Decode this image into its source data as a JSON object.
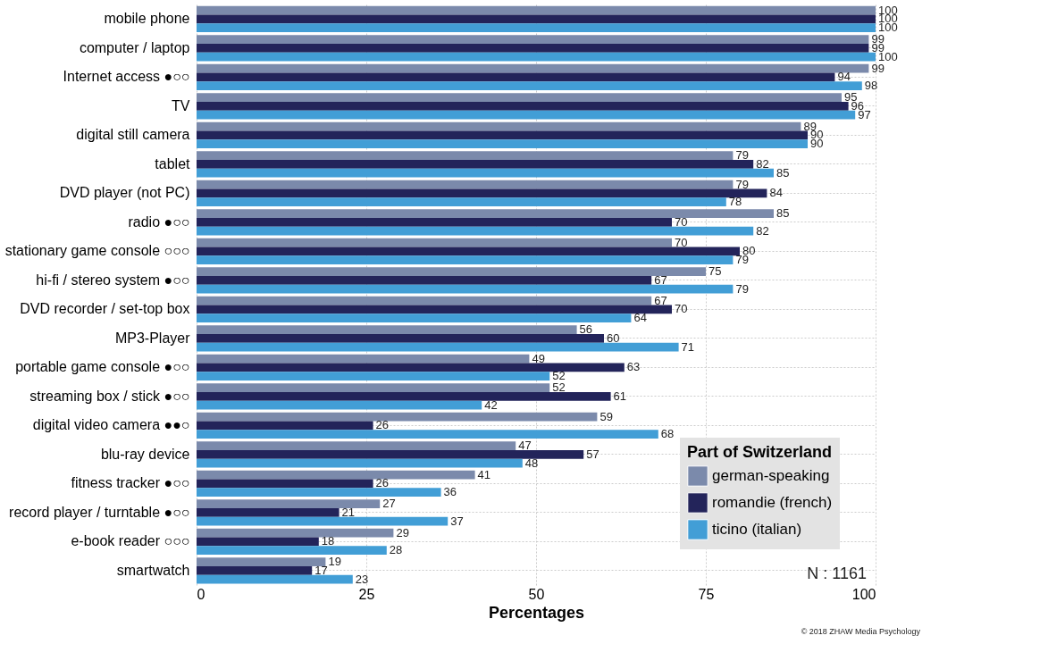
{
  "chart_data": {
    "type": "bar",
    "orientation": "horizontal",
    "xlabel": "Percentages",
    "legend_title": "Part of Switzerland",
    "legend": "bottom right",
    "grid": true,
    "data_labels": true,
    "xlim": [
      0,
      100
    ],
    "xticks": [
      0,
      25,
      50,
      75,
      100
    ],
    "categories": [
      "mobile phone",
      "computer / laptop",
      "Internet access ●○○",
      "TV",
      "digital still camera",
      "tablet",
      "DVD player (not PC)",
      "radio ●○○",
      "stationary game console ○○○",
      "hi-fi / stereo system ●○○",
      "DVD recorder / set-top box",
      "MP3-Player",
      "portable game console ●○○",
      "streaming box / stick ●○○",
      "digital video camera ●●○",
      "blu-ray device",
      "fitness tracker ●○○",
      "record player / turntable ●○○",
      "e-book reader ○○○",
      "smartwatch"
    ],
    "series": [
      {
        "name": "german-speaking",
        "color": "#7b8aab",
        "values": [
          100,
          99,
          99,
          95,
          89,
          79,
          79,
          85,
          70,
          75,
          67,
          56,
          49,
          52,
          59,
          47,
          41,
          27,
          29,
          19
        ]
      },
      {
        "name": "romandie (french)",
        "color": "#23245a",
        "values": [
          100,
          99,
          94,
          96,
          90,
          82,
          84,
          70,
          80,
          67,
          70,
          60,
          63,
          61,
          26,
          57,
          26,
          21,
          18,
          17
        ]
      },
      {
        "name": "ticino (italian)",
        "color": "#429ed6",
        "values": [
          100,
          100,
          98,
          97,
          90,
          85,
          78,
          82,
          79,
          79,
          64,
          71,
          52,
          42,
          68,
          48,
          36,
          37,
          28,
          23
        ]
      }
    ],
    "annotations": [
      "N : 1161",
      "© 2018 ZHAW Media Psychology"
    ]
  }
}
